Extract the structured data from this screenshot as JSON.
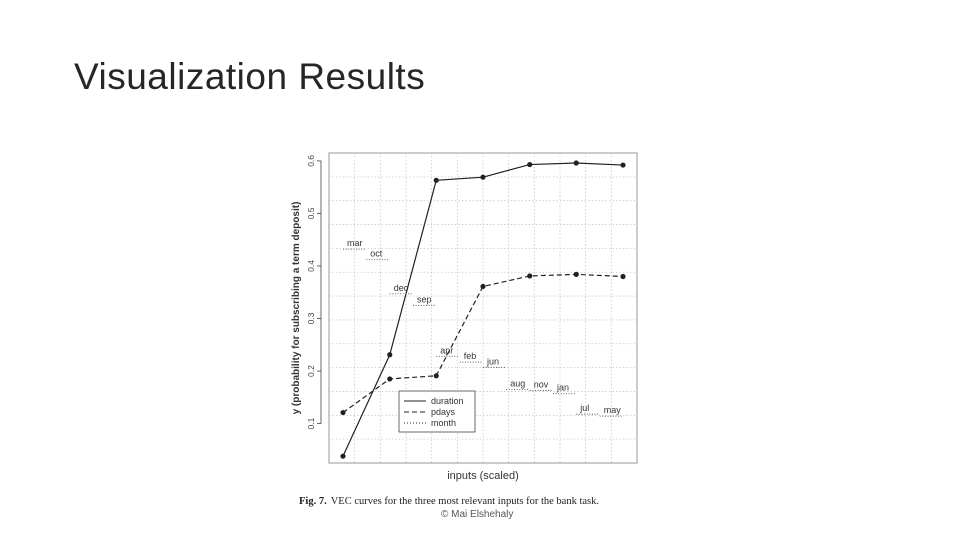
{
  "slide": {
    "title": "Visualization Results",
    "caption_label": "Fig. 7.",
    "caption_text": "VEC curves for the three most relevant inputs for the bank task.",
    "copyright": "© Mai Elshehaly"
  },
  "chart_data": {
    "type": "line",
    "xlabel": "inputs (scaled)",
    "ylabel": "y (probability for subscribing a term deposit)",
    "ylim": [
      0.025,
      0.615
    ],
    "yticks": [
      0.1,
      0.2,
      0.3,
      0.4,
      0.5,
      0.6
    ],
    "xlim": [
      -0.05,
      1.05
    ],
    "grid": true,
    "legend_position": "bottom-center",
    "series": [
      {
        "name": "duration",
        "line_style": "solid",
        "x": [
          0,
          0.167,
          0.333,
          0.5,
          0.667,
          0.833,
          1.0
        ],
        "values": [
          0.038,
          0.231,
          0.563,
          0.569,
          0.593,
          0.596,
          0.592
        ]
      },
      {
        "name": "pdays",
        "line_style": "dashed",
        "x": [
          0,
          0.167,
          0.333,
          0.5,
          0.667,
          0.833,
          1.0
        ],
        "values": [
          0.121,
          0.185,
          0.191,
          0.361,
          0.381,
          0.384,
          0.38
        ]
      },
      {
        "name": "month",
        "line_style": "dotted",
        "labels": [
          {
            "text": "mar",
            "x": 0.0,
            "y": 0.432
          },
          {
            "text": "oct",
            "x": 0.083,
            "y": 0.412
          },
          {
            "text": "dec",
            "x": 0.167,
            "y": 0.347
          },
          {
            "text": "sep",
            "x": 0.25,
            "y": 0.325
          },
          {
            "text": "apr",
            "x": 0.333,
            "y": 0.228
          },
          {
            "text": "feb",
            "x": 0.417,
            "y": 0.217
          },
          {
            "text": "jun",
            "x": 0.5,
            "y": 0.207
          },
          {
            "text": "aug",
            "x": 0.583,
            "y": 0.165
          },
          {
            "text": "nov",
            "x": 0.667,
            "y": 0.163
          },
          {
            "text": "jan",
            "x": 0.75,
            "y": 0.157
          },
          {
            "text": "jul",
            "x": 0.833,
            "y": 0.118
          },
          {
            "text": "may",
            "x": 0.917,
            "y": 0.114
          }
        ]
      }
    ]
  }
}
